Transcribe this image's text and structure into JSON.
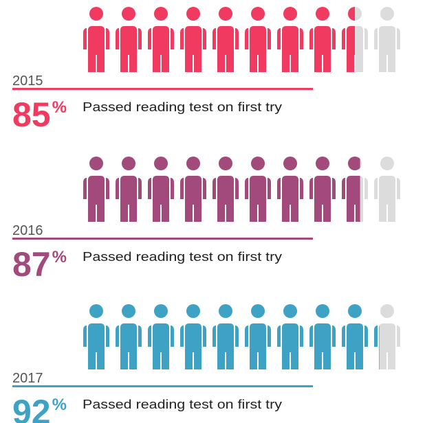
{
  "chart_data": {
    "type": "pictogram",
    "categories": [
      "2015",
      "2016",
      "2017"
    ],
    "values": [
      85,
      87,
      92
    ],
    "colors": [
      "#f03a5f",
      "#a24a7b",
      "#3ea2c5"
    ],
    "unit": "%",
    "caption": "Passed reading test on first try",
    "ylim": [
      0,
      100
    ]
  }
}
